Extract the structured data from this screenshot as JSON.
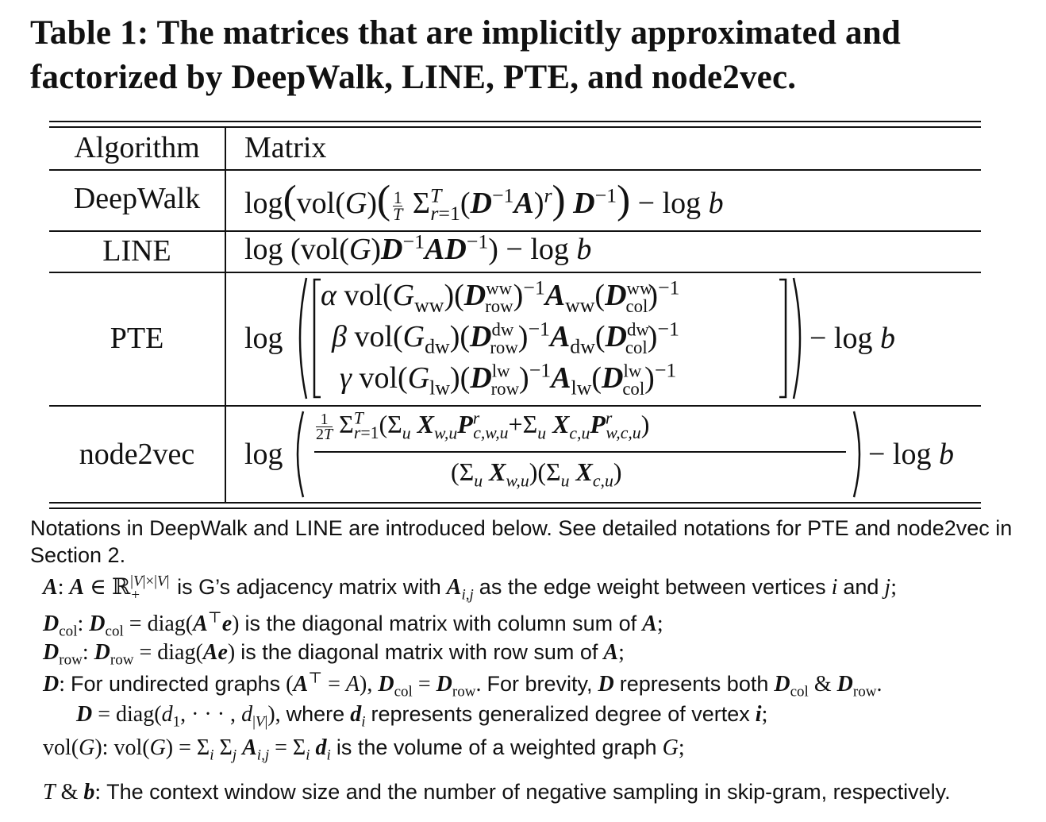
{
  "caption": "Table 1: The matrices that are implicitly approximated and factorized by DeepWalk, LINE, PTE, and node2vec.",
  "table": {
    "headers": {
      "algorithm": "Algorithm",
      "matrix": "Matrix"
    },
    "rows": [
      {
        "algorithm": "DeepWalk"
      },
      {
        "algorithm": "LINE"
      },
      {
        "algorithm": "PTE"
      },
      {
        "algorithm": "node2vec"
      }
    ]
  },
  "notes": {
    "intro": "Notations in DeepWalk and LINE are introduced below. See detailed notations for PTE and node2vec in Section 2.",
    "A_text": "is G’s adjacency matrix with",
    "A_text2": "as the edge weight between vertices",
    "Dcol_text": "is the diagonal matrix with column sum of",
    "Drow_text": "is the diagonal matrix with row sum of",
    "D_text": "For undirected graphs",
    "D_text2": "For brevity,",
    "D_text3": "represents both",
    "D_line2_text": "where",
    "D_line2_text2": "represents generalized degree of vertex",
    "vol_text": "is the volume of a weighted graph",
    "Tb_text": "The context window size and the number of negative sampling in skip-gram, respectively."
  }
}
